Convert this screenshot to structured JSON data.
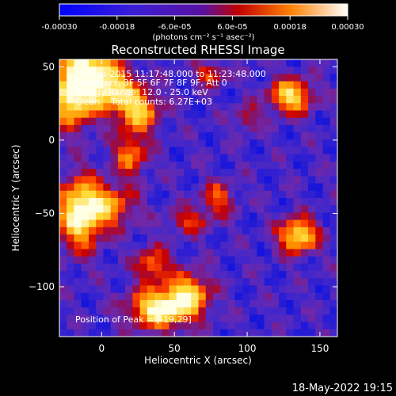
{
  "window": {
    "timestamp": "18-May-2022 19:15"
  },
  "colorbar": {
    "ticks": [
      "-0.00030",
      "-0.00018",
      "-6.0e-05",
      "6.0e-05",
      "0.00018",
      "0.00030"
    ],
    "label": "(photons cm⁻² s⁻¹ asec⁻²)",
    "range": [
      -0.0003,
      0.0003
    ]
  },
  "chart_data": {
    "type": "heatmap",
    "title": "Reconstructed RHESSI Image",
    "xlabel": "Heliocentric X (arcsec)",
    "ylabel": "Heliocentric Y (arcsec)",
    "xlim": [
      -29,
      162
    ],
    "ylim": [
      -134,
      55
    ],
    "xticks": [
      0,
      50,
      100,
      150
    ],
    "yticks": [
      50,
      0,
      -50,
      -100
    ],
    "xtick_labels": [
      "0",
      "50",
      "100",
      "150"
    ],
    "ytick_labels": [
      "50",
      "0",
      "−50",
      "−100"
    ],
    "annotations": {
      "time_range": "7-Feb-2015 11:17:48.000 to 11:23:48.000",
      "detectors": "Detectors: 3F 5F 6F 7F 8F 9F, Att 0",
      "energy": "Energy Range: 12.0 - 25.0 keV",
      "clean": "Clean    Total counts: 6.27E+03",
      "peak": "Position of Peak = [-19,29]"
    },
    "sources": [
      {
        "x": -20,
        "y": 30,
        "amp": 1.0,
        "sx": 10,
        "sy": 14
      },
      {
        "x": -10,
        "y": 50,
        "amp": 0.8,
        "sx": 12,
        "sy": 8
      },
      {
        "x": 5,
        "y": 35,
        "amp": 0.9,
        "sx": 12,
        "sy": 10
      },
      {
        "x": 25,
        "y": 20,
        "amp": 0.75,
        "sx": 10,
        "sy": 10
      },
      {
        "x": -15,
        "y": -50,
        "amp": 1.0,
        "sx": 10,
        "sy": 16
      },
      {
        "x": 5,
        "y": -45,
        "amp": 0.6,
        "sx": 12,
        "sy": 10
      },
      {
        "x": 20,
        "y": -10,
        "amp": 0.55,
        "sx": 8,
        "sy": 10
      },
      {
        "x": 40,
        "y": -115,
        "amp": 1.0,
        "sx": 14,
        "sy": 9
      },
      {
        "x": 60,
        "y": -105,
        "amp": 0.75,
        "sx": 10,
        "sy": 10
      },
      {
        "x": 35,
        "y": -85,
        "amp": 0.55,
        "sx": 8,
        "sy": 8
      },
      {
        "x": 130,
        "y": 30,
        "amp": 0.85,
        "sx": 10,
        "sy": 8
      },
      {
        "x": 135,
        "y": -65,
        "amp": 0.9,
        "sx": 9,
        "sy": 8
      },
      {
        "x": 80,
        "y": -40,
        "amp": 0.45,
        "sx": 8,
        "sy": 8
      },
      {
        "x": 75,
        "y": 45,
        "amp": 0.5,
        "sx": 7,
        "sy": 5
      },
      {
        "x": 100,
        "y": 15,
        "amp": 0.35,
        "sx": 6,
        "sy": 6
      },
      {
        "x": 60,
        "y": -55,
        "amp": 0.4,
        "sx": 10,
        "sy": 6
      }
    ]
  }
}
